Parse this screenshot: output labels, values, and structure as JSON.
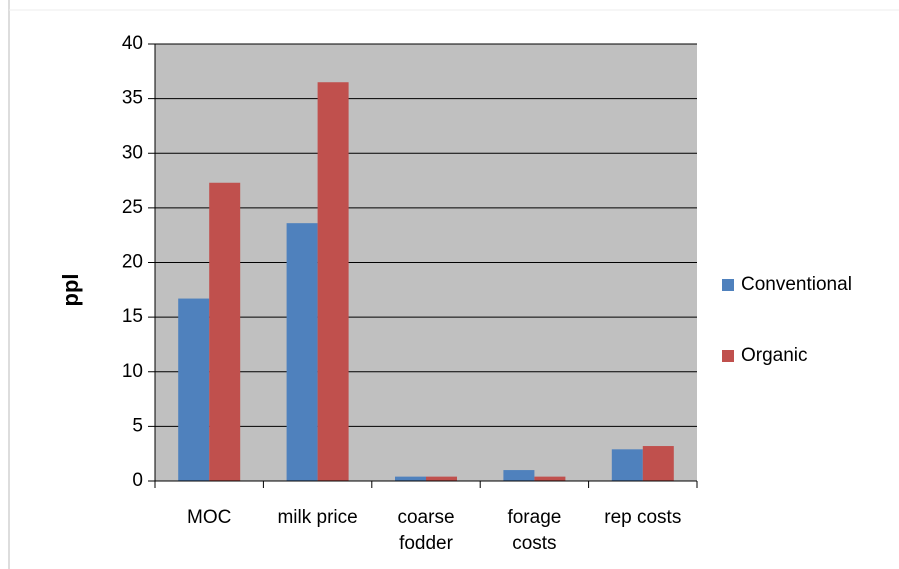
{
  "chart_data": {
    "type": "bar",
    "y_label": "ppl",
    "categories": [
      "MOC",
      "milk price",
      "coarse fodder",
      "forage costs",
      "rep costs"
    ],
    "series": [
      {
        "name": "Conventional",
        "color": "#4f81bd",
        "values": [
          16.7,
          23.6,
          0.4,
          1.0,
          2.9
        ]
      },
      {
        "name": "Organic",
        "color": "#c0504d",
        "values": [
          27.3,
          36.5,
          0.4,
          0.4,
          3.2
        ]
      }
    ],
    "ylim": [
      0,
      40
    ],
    "yticks": [
      0,
      5,
      10,
      15,
      20,
      25,
      30,
      35,
      40
    ],
    "grid": true,
    "legend": "right",
    "plot_background": "#c0c0c0"
  }
}
